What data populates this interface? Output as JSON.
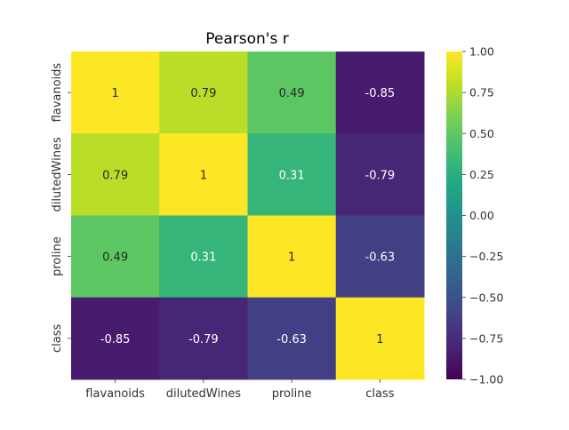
{
  "chart_data": {
    "type": "heatmap",
    "title": "Pearson's r",
    "xlabel": "",
    "ylabel": "",
    "row_labels": [
      "flavanoids",
      "dilutedWines",
      "proline",
      "class"
    ],
    "col_labels": [
      "flavanoids",
      "dilutedWines",
      "proline",
      "class"
    ],
    "values": [
      [
        1,
        0.79,
        0.49,
        -0.85
      ],
      [
        0.79,
        1,
        0.31,
        -0.79
      ],
      [
        0.49,
        0.31,
        1,
        -0.63
      ],
      [
        -0.85,
        -0.79,
        -0.63,
        1
      ]
    ],
    "value_labels": [
      [
        "1",
        "0.79",
        "0.49",
        "-0.85"
      ],
      [
        "0.79",
        "1",
        "0.31",
        "-0.79"
      ],
      [
        "0.49",
        "0.31",
        "1",
        "-0.63"
      ],
      [
        "-0.85",
        "-0.79",
        "-0.63",
        "1"
      ]
    ],
    "colormap": "viridis",
    "vmin": -1,
    "vmax": 1,
    "colorbar_ticks": [
      1.0,
      0.75,
      0.5,
      0.25,
      0.0,
      -0.25,
      -0.5,
      -0.75,
      -1.0
    ],
    "colorbar_tick_labels": [
      "1.00",
      "0.75",
      "0.50",
      "0.25",
      "0.00",
      "−0.25",
      "−0.50",
      "−0.75",
      "−1.00"
    ],
    "grid": false,
    "legend": "colorbar-right"
  }
}
